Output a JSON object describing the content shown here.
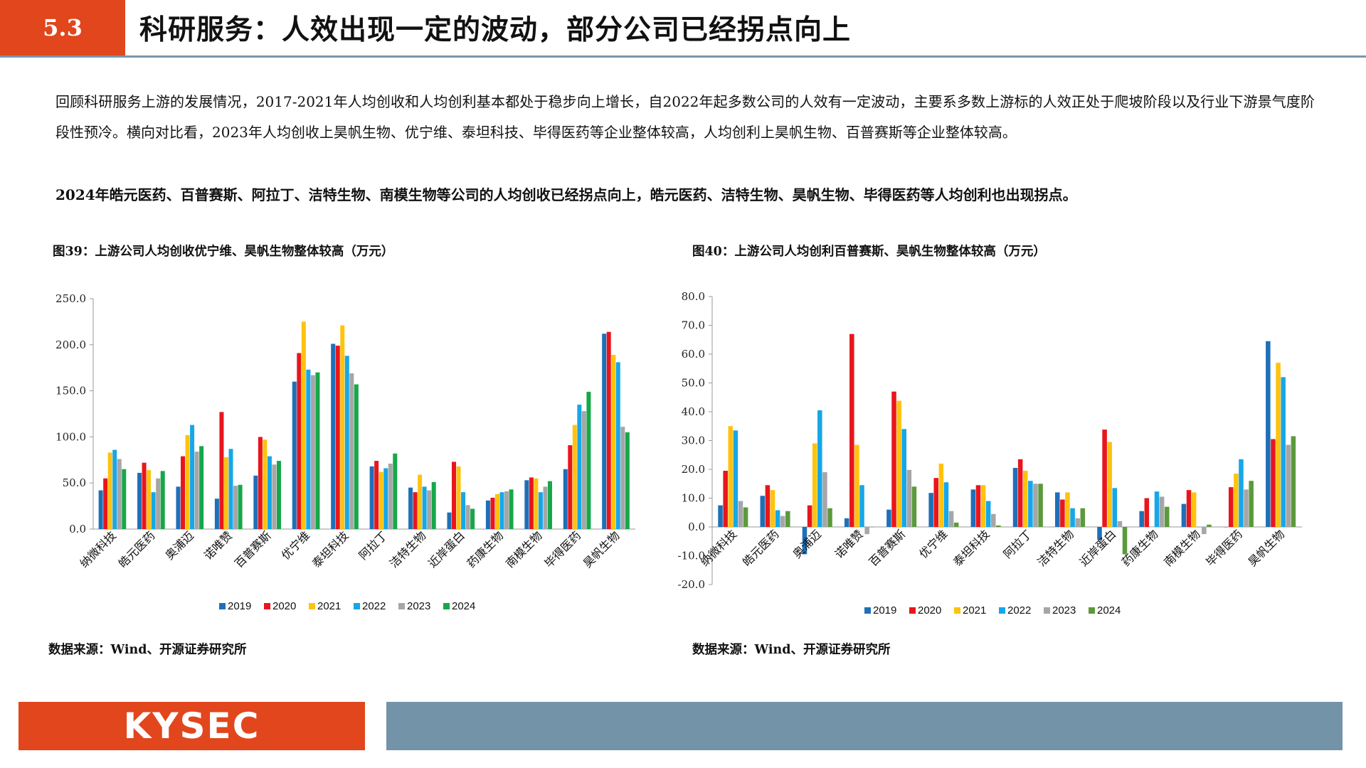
{
  "header": {
    "section": "5.3",
    "title": "科研服务：人效出现一定的波动，部分公司已经拐点向上"
  },
  "body": {
    "paragraph": "回顾科研服务上游的发展情况，2017-2021年人均创收和人均创利基本都处于稳步向上增长，自2022年起多数公司的人效有一定波动，主要系多数上游标的人效正处于爬坡阶段以及行业下游景气度阶段性预冷。横向对比看，2023年人均创收上昊帆生物、优宁维、泰坦科技、毕得医药等企业整体较高，人均创利上昊帆生物、百普赛斯等企业整体较高。",
    "bold_paragraph": "2024年皓元医药、百普赛斯、阿拉丁、洁特生物、南模生物等公司的人均创收已经拐点向上，皓元医药、洁特生物、昊帆生物、毕得医药等人均创利也出现拐点。"
  },
  "figures": {
    "left_title": "图39：上游公司人均创收优宁维、昊帆生物整体较高（万元）",
    "right_title": "图40：上游公司人均创利百普赛斯、昊帆生物整体较高（万元）",
    "left_source": "数据来源：Wind、开源证券研究所",
    "right_source": "数据来源：Wind、开源证券研究所"
  },
  "footer": {
    "logo": "KYSEC"
  },
  "chart_data": [
    {
      "type": "bar",
      "title": "图39：上游公司人均创收优宁维、昊帆生物整体较高（万元）",
      "categories": [
        "纳微科技",
        "皓元医药",
        "奥浦迈",
        "诺唯赞",
        "百普赛斯",
        "优宁维",
        "泰坦科技",
        "阿拉丁",
        "洁特生物",
        "近岸蛋白",
        "药康生物",
        "南模生物",
        "毕得医药",
        "昊帆生物"
      ],
      "series": [
        {
          "name": "2019",
          "color": "#1f6fb8",
          "values": [
            42,
            61,
            46,
            33,
            58,
            160,
            201,
            68,
            45,
            18,
            31,
            53,
            65,
            212
          ]
        },
        {
          "name": "2020",
          "color": "#e8161c",
          "values": [
            55,
            72,
            79,
            127,
            100,
            191,
            199,
            74,
            40,
            73,
            34,
            56,
            91,
            214
          ]
        },
        {
          "name": "2021",
          "color": "#ffc20e",
          "values": [
            83,
            64,
            102,
            78,
            97,
            225,
            221,
            62,
            59,
            68,
            38,
            55,
            113,
            189
          ]
        },
        {
          "name": "2022",
          "color": "#16a7e8",
          "values": [
            86,
            40,
            113,
            87,
            79,
            173,
            188,
            66,
            46,
            40,
            40,
            40,
            135,
            181
          ]
        },
        {
          "name": "2023",
          "color": "#a6a6a6",
          "values": [
            76,
            55,
            84,
            47,
            70,
            167,
            169,
            71,
            42,
            26,
            41,
            46,
            128,
            111
          ]
        },
        {
          "name": "2024",
          "color": "#17a74a",
          "values": [
            65,
            63,
            90,
            48,
            74,
            170,
            157,
            82,
            51,
            22,
            43,
            52,
            149,
            105
          ]
        }
      ],
      "yticks": [
        "0.0",
        "50.0",
        "100.0",
        "150.0",
        "200.0",
        "250.0"
      ],
      "ylim": [
        0,
        250
      ]
    },
    {
      "type": "bar",
      "title": "图40：上游公司人均创利百普赛斯、昊帆生物整体较高（万元）",
      "categories": [
        "纳微科技",
        "皓元医药",
        "奥浦迈",
        "诺唯赞",
        "百普赛斯",
        "优宁维",
        "泰坦科技",
        "阿拉丁",
        "洁特生物",
        "近岸蛋白",
        "药康生物",
        "南模生物",
        "毕得医药",
        "昊帆生物"
      ],
      "series": [
        {
          "name": "2019",
          "color": "#1f6fb8",
          "values": [
            7.5,
            10.8,
            -9.5,
            3.0,
            6.0,
            11.8,
            13.0,
            20.5,
            12.0,
            -4.5,
            5.5,
            8.0,
            0,
            64.5
          ]
        },
        {
          "name": "2020",
          "color": "#e8161c",
          "values": [
            19.5,
            14.5,
            7.5,
            67.0,
            47.0,
            17.0,
            14.5,
            23.5,
            9.5,
            33.8,
            10.0,
            12.8,
            13.8,
            30.5
          ]
        },
        {
          "name": "2021",
          "color": "#ffc20e",
          "values": [
            35.0,
            12.8,
            29.0,
            28.5,
            43.8,
            22.0,
            14.5,
            19.5,
            12.0,
            29.5,
            0,
            12.0,
            18.5,
            57.0
          ]
        },
        {
          "name": "2022",
          "color": "#16a7e8",
          "values": [
            33.5,
            5.8,
            40.5,
            14.5,
            34.0,
            15.5,
            9.0,
            16.0,
            6.5,
            13.5,
            12.3,
            0,
            23.5,
            52.0
          ]
        },
        {
          "name": "2023",
          "color": "#a6a6a6",
          "values": [
            9.0,
            3.8,
            19.0,
            -2.5,
            19.8,
            5.5,
            4.5,
            15.0,
            3.0,
            2.0,
            10.5,
            -2.5,
            13.0,
            28.5
          ]
        },
        {
          "name": "2024",
          "color": "#5b9a3c",
          "values": [
            6.8,
            5.5,
            6.5,
            0,
            14.0,
            1.5,
            0.5,
            15.0,
            6.5,
            -9.5,
            7.0,
            0.8,
            16.0,
            31.5
          ]
        }
      ],
      "yticks": [
        "-20.0",
        "-10.0",
        "0.0",
        "10.0",
        "20.0",
        "30.0",
        "40.0",
        "50.0",
        "60.0",
        "70.0",
        "80.0"
      ],
      "ylim": [
        -20,
        80
      ]
    }
  ]
}
